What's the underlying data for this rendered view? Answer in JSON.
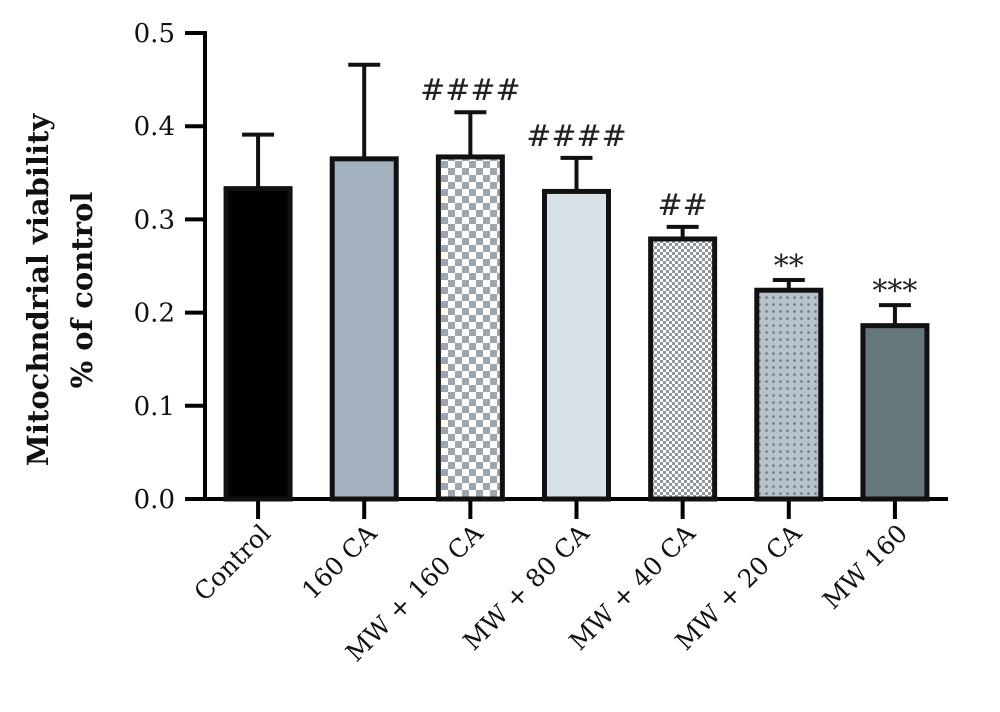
{
  "chart_data": {
    "type": "bar",
    "title": "",
    "xlabel": "",
    "ylabel_lines": [
      "Mitochndrial viability",
      "% of control"
    ],
    "categories": [
      "Control",
      "160 CA",
      "MW + 160 CA",
      "MW + 80 CA",
      "MW + 40 CA",
      "MW + 20 CA",
      "MW 160"
    ],
    "values": [
      0.333,
      0.365,
      0.367,
      0.33,
      0.279,
      0.224,
      0.186
    ],
    "errors": [
      0.058,
      0.101,
      0.048,
      0.036,
      0.013,
      0.011,
      0.022
    ],
    "annotations": [
      "",
      "",
      "####",
      "####",
      "##",
      "**",
      "***"
    ],
    "ylim": [
      0,
      0.5
    ],
    "yticks": [
      "0.0",
      "0.1",
      "0.2",
      "0.3",
      "0.4",
      "0.5"
    ],
    "bar_fills": [
      {
        "type": "solid",
        "color": "#000000"
      },
      {
        "type": "solid",
        "color": "#a4b2bf"
      },
      {
        "type": "checker",
        "color1": "#9aa6b0",
        "color2": "#ffffff"
      },
      {
        "type": "solid",
        "color": "#d9e1e8"
      },
      {
        "type": "checker-fine",
        "color1": "#8c97a0",
        "color2": "#ffffff"
      },
      {
        "type": "dots",
        "color1": "#6a7880",
        "color2": "#b6c3cc"
      },
      {
        "type": "solid",
        "color": "#66777c"
      }
    ],
    "grid": false,
    "legend": "none"
  }
}
